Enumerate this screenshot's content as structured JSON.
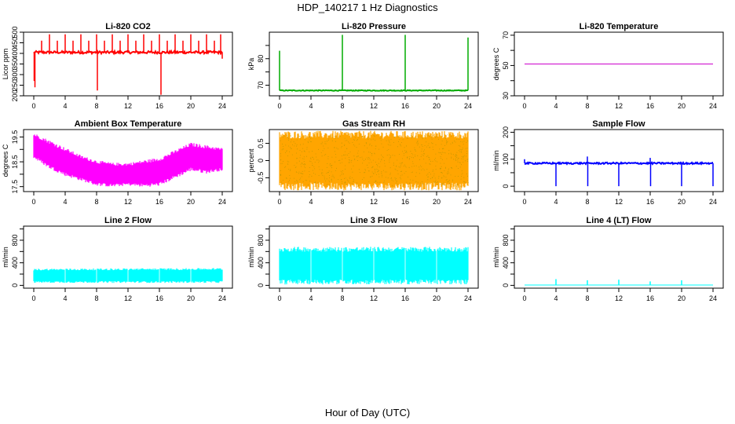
{
  "figure": {
    "title": "HDP_140217  1 Hz Diagnostics",
    "xlabel": "Hour of Day (UTC)"
  },
  "chart_data": [
    {
      "type": "line",
      "title": "Li-820 CO2",
      "ylabel": "Licor ppm",
      "xlim": [
        0,
        24
      ],
      "ylim": [
        200,
        500
      ],
      "xticks": [
        0,
        4,
        8,
        12,
        16,
        20,
        24
      ],
      "yticks": [
        200,
        250,
        300,
        350,
        400,
        450,
        500
      ],
      "color": "#ff0000",
      "baseline": 405,
      "noise": 6,
      "spikes": [
        {
          "x": 0.05,
          "y": 270
        },
        {
          "x": 0.15,
          "y": 240
        },
        {
          "x": 1.0,
          "y": 460
        },
        {
          "x": 2.0,
          "y": 490
        },
        {
          "x": 3.0,
          "y": 460
        },
        {
          "x": 4.0,
          "y": 490
        },
        {
          "x": 5.0,
          "y": 460
        },
        {
          "x": 6.0,
          "y": 490
        },
        {
          "x": 7.0,
          "y": 460
        },
        {
          "x": 8.0,
          "y": 490
        },
        {
          "x": 8.1,
          "y": 225
        },
        {
          "x": 9.0,
          "y": 460
        },
        {
          "x": 10.0,
          "y": 490
        },
        {
          "x": 11.0,
          "y": 460
        },
        {
          "x": 12.0,
          "y": 490
        },
        {
          "x": 13.0,
          "y": 460
        },
        {
          "x": 14.0,
          "y": 490
        },
        {
          "x": 15.0,
          "y": 460
        },
        {
          "x": 16.0,
          "y": 490
        },
        {
          "x": 16.2,
          "y": 205
        },
        {
          "x": 17.0,
          "y": 460
        },
        {
          "x": 18.0,
          "y": 490
        },
        {
          "x": 19.0,
          "y": 460
        },
        {
          "x": 20.0,
          "y": 490
        },
        {
          "x": 21.0,
          "y": 460
        },
        {
          "x": 22.0,
          "y": 490
        },
        {
          "x": 23.0,
          "y": 460
        },
        {
          "x": 23.8,
          "y": 490
        },
        {
          "x": 24.0,
          "y": 375
        }
      ]
    },
    {
      "type": "line",
      "title": "Li-820 Pressure",
      "ylabel": "kPa",
      "xlim": [
        0,
        24
      ],
      "ylim": [
        66,
        90
      ],
      "xticks": [
        0,
        4,
        8,
        12,
        16,
        20,
        24
      ],
      "yticks": [
        70,
        75,
        80,
        85
      ],
      "ytick_labels": [
        "70",
        "",
        "80",
        ""
      ],
      "color": "#00aa00",
      "baseline": 68,
      "noise": 0.15,
      "spikes": [
        {
          "x": 0.0,
          "y": 83
        },
        {
          "x": 8.0,
          "y": 89
        },
        {
          "x": 16.0,
          "y": 89
        },
        {
          "x": 24.0,
          "y": 88
        }
      ]
    },
    {
      "type": "line",
      "title": "Li-820 Temperature",
      "ylabel": "degrees C",
      "xlim": [
        0,
        24
      ],
      "ylim": [
        30,
        72
      ],
      "xticks": [
        0,
        4,
        8,
        12,
        16,
        20,
        24
      ],
      "yticks": [
        30,
        40,
        50,
        60,
        70
      ],
      "ytick_labels": [
        "30",
        "",
        "50",
        "",
        "70"
      ],
      "color": "#cc00cc",
      "baseline": 51,
      "noise": 0,
      "spikes": []
    },
    {
      "type": "area",
      "title": "Ambient Box Temperature",
      "ylabel": "degrees C",
      "xlim": [
        0,
        24
      ],
      "ylim": [
        17.3,
        19.8
      ],
      "xticks": [
        0,
        4,
        8,
        12,
        16,
        20,
        24
      ],
      "yticks": [
        17.5,
        18.0,
        18.5,
        19.0,
        19.5
      ],
      "ytick_labels": [
        "17.5",
        "",
        "18.5",
        "",
        "19.5"
      ],
      "color": "#ff00ff",
      "band": [
        {
          "x": 0,
          "lo": 18.7,
          "hi": 19.6
        },
        {
          "x": 2,
          "lo": 18.3,
          "hi": 19.3
        },
        {
          "x": 4,
          "lo": 18.0,
          "hi": 19.0
        },
        {
          "x": 6,
          "lo": 17.8,
          "hi": 18.7
        },
        {
          "x": 8,
          "lo": 17.6,
          "hi": 18.5
        },
        {
          "x": 10,
          "lo": 17.55,
          "hi": 18.4
        },
        {
          "x": 12,
          "lo": 17.6,
          "hi": 18.4
        },
        {
          "x": 14,
          "lo": 17.55,
          "hi": 18.5
        },
        {
          "x": 16,
          "lo": 17.6,
          "hi": 18.6
        },
        {
          "x": 18,
          "lo": 17.9,
          "hi": 18.9
        },
        {
          "x": 20,
          "lo": 18.2,
          "hi": 19.2
        },
        {
          "x": 22,
          "lo": 18.1,
          "hi": 19.1
        },
        {
          "x": 24,
          "lo": 18.2,
          "hi": 19.0
        }
      ]
    },
    {
      "type": "area",
      "title": "Gas Stream RH",
      "ylabel": "percent",
      "xlim": [
        0,
        24
      ],
      "ylim": [
        -0.9,
        0.9
      ],
      "xticks": [
        0,
        4,
        8,
        12,
        16,
        20,
        24
      ],
      "yticks": [
        -0.5,
        0.0,
        0.5
      ],
      "color": "#ffa500",
      "dot_color": "#888800",
      "band": [
        {
          "x": 0,
          "lo": -0.75,
          "hi": 0.75
        },
        {
          "x": 24,
          "lo": -0.75,
          "hi": 0.75
        }
      ]
    },
    {
      "type": "line",
      "title": "Sample Flow",
      "ylabel": "ml/min",
      "xlim": [
        0,
        24
      ],
      "ylim": [
        -20,
        210
      ],
      "xticks": [
        0,
        4,
        8,
        12,
        16,
        20,
        24
      ],
      "yticks": [
        0,
        50,
        100,
        150,
        200
      ],
      "ytick_labels": [
        "0",
        "",
        "100",
        "",
        "200"
      ],
      "color": "#0000ff",
      "baseline": 85,
      "noise": 3,
      "spikes": [
        {
          "x": 0.0,
          "y": 100
        },
        {
          "x": 4.0,
          "y": 0
        },
        {
          "x": 8.0,
          "y": 110
        },
        {
          "x": 8.05,
          "y": 0
        },
        {
          "x": 12.0,
          "y": 0
        },
        {
          "x": 16.0,
          "y": 105
        },
        {
          "x": 16.05,
          "y": 0
        },
        {
          "x": 20.0,
          "y": 0
        },
        {
          "x": 24.0,
          "y": 0
        }
      ]
    },
    {
      "type": "area",
      "title": "Line 2 Flow",
      "ylabel": "ml/min",
      "xlim": [
        0,
        24
      ],
      "ylim": [
        -50,
        1050
      ],
      "xticks": [
        0,
        4,
        8,
        12,
        16,
        20,
        24
      ],
      "yticks": [
        0,
        200,
        400,
        600,
        800,
        1000
      ],
      "ytick_labels": [
        "0",
        "",
        "400",
        "",
        "800",
        ""
      ],
      "color": "#00ffff",
      "band": [
        {
          "x": 0,
          "lo": 60,
          "hi": 280
        },
        {
          "x": 24,
          "lo": 60,
          "hi": 290
        }
      ],
      "gaps": [
        4,
        8,
        12,
        16,
        20
      ]
    },
    {
      "type": "area",
      "title": "Line 3 Flow",
      "ylabel": "ml/min",
      "xlim": [
        0,
        24
      ],
      "ylim": [
        -50,
        1050
      ],
      "xticks": [
        0,
        4,
        8,
        12,
        16,
        20,
        24
      ],
      "yticks": [
        0,
        200,
        400,
        600,
        800,
        1000
      ],
      "ytick_labels": [
        "0",
        "",
        "400",
        "",
        "800",
        ""
      ],
      "color": "#00ffff",
      "band": [
        {
          "x": 0,
          "lo": 60,
          "hi": 640
        },
        {
          "x": 24,
          "lo": 60,
          "hi": 640
        }
      ],
      "gaps": [
        4,
        8,
        12,
        16,
        20
      ]
    },
    {
      "type": "line",
      "title": "Line 4 (LT) Flow",
      "ylabel": "ml/min",
      "xlim": [
        0,
        24
      ],
      "ylim": [
        -50,
        1050
      ],
      "xticks": [
        0,
        4,
        8,
        12,
        16,
        20,
        24
      ],
      "yticks": [
        0,
        200,
        400,
        600,
        800,
        1000
      ],
      "ytick_labels": [
        "0",
        "",
        "400",
        "",
        "800",
        ""
      ],
      "color": "#00ffff",
      "baseline": 5,
      "noise": 0,
      "spikes": [
        {
          "x": 4.0,
          "y": 110
        },
        {
          "x": 8.0,
          "y": 90
        },
        {
          "x": 12.0,
          "y": 100
        },
        {
          "x": 16.0,
          "y": 70
        },
        {
          "x": 20.0,
          "y": 90
        }
      ]
    }
  ]
}
